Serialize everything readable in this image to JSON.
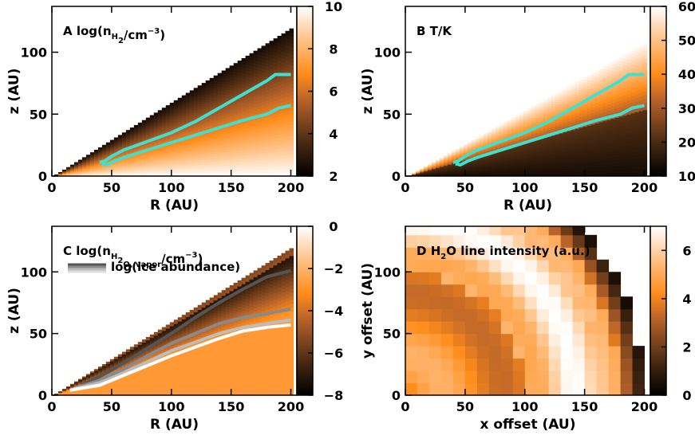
{
  "figure": {
    "description_note": ""
  },
  "chart_data": [
    {
      "id": "A",
      "type": "heatmap",
      "panel_label": "A",
      "title_parts": [
        "log(n",
        "H",
        "2",
        "/cm",
        "−3",
        ")"
      ],
      "xlabel": "R (AU)",
      "ylabel": "z (AU)",
      "xlim": [
        0,
        205
      ],
      "ylim": [
        0,
        137
      ],
      "xticks": [
        0,
        50,
        100,
        150,
        200
      ],
      "yticks": [
        0,
        50,
        100
      ],
      "colorbar": {
        "ticks": [
          2,
          4,
          6,
          8,
          10
        ],
        "range": [
          2,
          10
        ],
        "map": "dark-to-white-orange"
      },
      "contours": [
        {
          "name": "upper",
          "color": "#40e0d0",
          "x": [
            40,
            44,
            50,
            60,
            80,
            100,
            120,
            140,
            160,
            180,
            187,
            200
          ],
          "y": [
            11,
            12,
            16,
            21,
            28,
            35,
            44,
            55,
            66,
            77,
            82,
            82
          ]
        },
        {
          "name": "lower",
          "color": "#40e0d0",
          "x": [
            42,
            46,
            52,
            60,
            80,
            100,
            120,
            140,
            160,
            180,
            190,
            200
          ],
          "y": [
            10,
            9,
            12,
            15,
            21,
            27,
            33,
            39,
            45,
            50,
            55,
            57
          ]
        }
      ]
    },
    {
      "id": "B",
      "type": "heatmap",
      "panel_label": "B",
      "title_parts": [
        "T/K"
      ],
      "xlabel": "R (AU)",
      "ylabel": "z (AU)",
      "xlim": [
        0,
        205
      ],
      "ylim": [
        0,
        137
      ],
      "xticks": [
        0,
        50,
        100,
        150,
        200
      ],
      "yticks": [
        0,
        50,
        100
      ],
      "colorbar": {
        "ticks": [
          10,
          20,
          30,
          40,
          50,
          60
        ],
        "range": [
          10,
          60
        ],
        "map": "dark-to-white-orange"
      },
      "contours": [
        {
          "name": "upper",
          "color": "#40e0d0",
          "x": [
            40,
            44,
            50,
            60,
            80,
            100,
            120,
            140,
            160,
            180,
            187,
            200
          ],
          "y": [
            11,
            12,
            16,
            21,
            28,
            35,
            44,
            55,
            66,
            77,
            82,
            82
          ]
        },
        {
          "name": "lower",
          "color": "#40e0d0",
          "x": [
            42,
            46,
            52,
            60,
            80,
            100,
            120,
            140,
            160,
            180,
            190,
            200
          ],
          "y": [
            10,
            9,
            12,
            15,
            21,
            27,
            33,
            39,
            45,
            50,
            55,
            57
          ]
        }
      ]
    },
    {
      "id": "C",
      "type": "heatmap",
      "panel_label": "C",
      "title_parts": [
        "log(n",
        "H",
        "2",
        "O, vapor",
        "/cm",
        "−3",
        ")"
      ],
      "legend_label": "log(ice abundance)",
      "xlabel": "R (AU)",
      "ylabel": "z (AU)",
      "xlim": [
        0,
        205
      ],
      "ylim": [
        0,
        137
      ],
      "xticks": [
        0,
        50,
        100,
        150,
        200
      ],
      "yticks": [
        0,
        50,
        100
      ],
      "colorbar": {
        "ticks": [
          -8,
          -6,
          -4,
          -2,
          0
        ],
        "range": [
          -8,
          0
        ],
        "map": "dark-to-white-orange"
      },
      "contours": [
        {
          "name": "ice-1",
          "color": "#555555",
          "x": [
            25,
            40,
            60,
            80,
            100,
            120,
            140,
            160,
            180,
            200
          ],
          "y": [
            8,
            15,
            26,
            38,
            50,
            63,
            75,
            86,
            96,
            101
          ]
        },
        {
          "name": "ice-2",
          "color": "#8a8a8a",
          "x": [
            20,
            40,
            60,
            80,
            100,
            120,
            140,
            160,
            180,
            200
          ],
          "y": [
            6,
            12,
            21,
            32,
            42,
            50,
            58,
            63,
            66,
            70
          ]
        },
        {
          "name": "ice-3",
          "color": "#bdbdbd",
          "x": [
            18,
            40,
            60,
            80,
            100,
            120,
            140,
            160,
            180,
            200
          ],
          "y": [
            5,
            10,
            18,
            27,
            36,
            43,
            50,
            55,
            58,
            61
          ]
        },
        {
          "name": "ice-4",
          "color": "#ffffff",
          "x": [
            15,
            40,
            60,
            80,
            100,
            120,
            140,
            160,
            180,
            200
          ],
          "y": [
            4,
            8,
            16,
            24,
            32,
            39,
            46,
            52,
            55,
            57
          ]
        }
      ]
    },
    {
      "id": "D",
      "type": "heatmap",
      "panel_label": "D",
      "title_parts": [
        "H",
        "2",
        "O line intensity (a.u.)"
      ],
      "xlabel": "x offset (AU)",
      "ylabel": "y offset (AU)",
      "xlim": [
        0,
        205
      ],
      "ylim": [
        0,
        137
      ],
      "xticks": [
        0,
        50,
        100,
        150,
        200
      ],
      "yticks": [
        0,
        50,
        100
      ],
      "colorbar": {
        "ticks": [
          0,
          2,
          4,
          6
        ],
        "range": [
          0,
          7
        ],
        "map": "dark-to-white-orange"
      }
    }
  ]
}
